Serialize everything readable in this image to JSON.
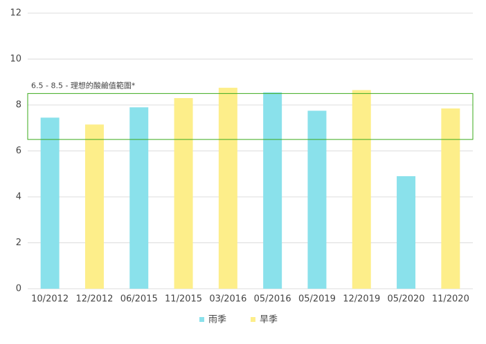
{
  "chart_data": {
    "type": "bar",
    "categories": [
      "10/2012",
      "12/2012",
      "06/2015",
      "11/2015",
      "03/2016",
      "05/2016",
      "05/2019",
      "12/2019",
      "05/2020",
      "11/2020"
    ],
    "series": [
      {
        "name": "雨季",
        "color": "#8ae1eb",
        "values": [
          7.45,
          null,
          7.9,
          null,
          null,
          8.55,
          7.75,
          null,
          4.9,
          null
        ]
      },
      {
        "name": "旱季",
        "color": "#fdee8a",
        "values": [
          null,
          7.15,
          null,
          8.3,
          8.75,
          null,
          null,
          8.65,
          null,
          7.85
        ]
      }
    ],
    "ylim": [
      0,
      12
    ],
    "yticks": [
      0,
      2,
      4,
      6,
      8,
      10,
      12
    ],
    "grid": true,
    "band": {
      "from": 6.5,
      "to": 8.5,
      "label": "6.5 - 8.5 - 理想的酸鹼值範圍*",
      "color": "#3aaa1a"
    },
    "legend": "bottom"
  }
}
